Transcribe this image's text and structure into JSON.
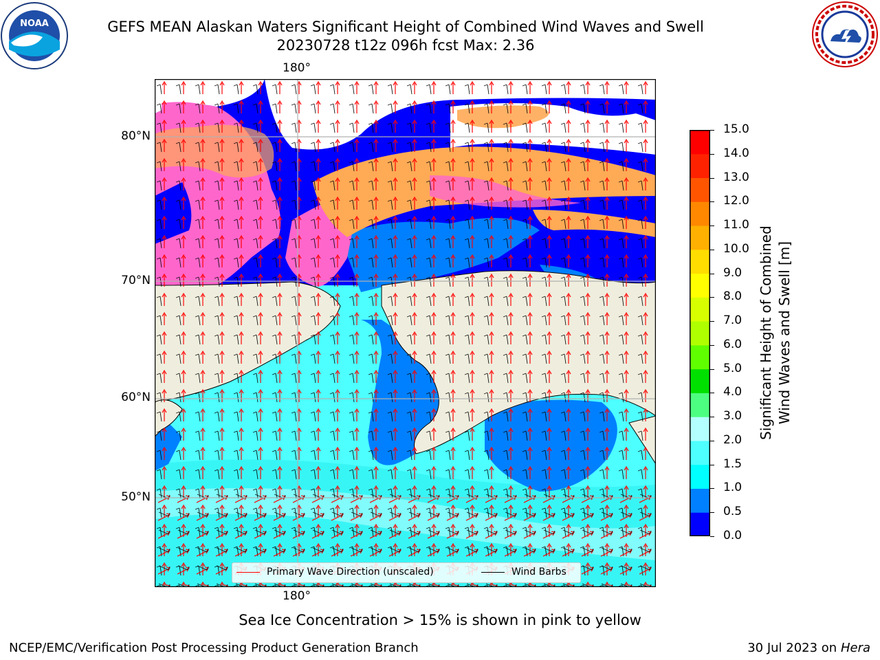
{
  "header": {
    "title_line1": "GEFS MEAN Alaskan Waters Significant Height of Combined Wind Waves and Swell",
    "title_line2": "20230728 t12z 096h fcst   Max: 2.36"
  },
  "logos": {
    "left": {
      "text": "NOAA",
      "ring_text": "NATIONAL OCEANIC AND ATMOSPHERIC ADMINISTRATION · U.S. DEPARTMENT OF COMMERCE"
    },
    "right": {
      "ring_text": "NATIONAL WEATHER SERVICE"
    }
  },
  "map": {
    "lon_label_top": "180°",
    "lon_label_bottom": "180°",
    "lat_labels": [
      "80°N",
      "70°N",
      "60°N",
      "50°N"
    ]
  },
  "colorbar": {
    "label_line1": "Significant Height of Combined",
    "label_line2": "Wind Waves and Swell [m]",
    "ticks": [
      "0.0",
      "0.5",
      "1.0",
      "1.5",
      "2.0",
      "3.0",
      "4.0",
      "5.0",
      "6.0",
      "7.0",
      "8.0",
      "9.0",
      "10.0",
      "11.0",
      "12.0",
      "13.0",
      "14.0",
      "15.0"
    ],
    "colors": [
      "#0000ff",
      "#0080ff",
      "#00ffff",
      "#4dffff",
      "#b3ffff",
      "#4dff80",
      "#00e000",
      "#60ff00",
      "#b0ff00",
      "#d8ff00",
      "#ffff00",
      "#ffdd00",
      "#ffb000",
      "#ff8800",
      "#ff5500",
      "#ff2200",
      "#ff0000"
    ]
  },
  "legend": {
    "wave_direction": "Primary Wave Direction (unscaled)",
    "wind_barbs": "Wind Barbs",
    "wave_color": "#ff0000",
    "barb_color": "#000000"
  },
  "note": "Sea Ice Concentration > 15% is shown in pink to yellow",
  "footer": {
    "left": "NCEP/EMC/Verification Post Processing Product Generation Branch",
    "right_prefix": "30 Jul 2023 on ",
    "right_italic": "Hera"
  },
  "colors": {
    "land": "#efeede",
    "ice_pink": "#ff66cc",
    "ice_orange": "#ffaa55",
    "grid": "#b0b0b0"
  }
}
